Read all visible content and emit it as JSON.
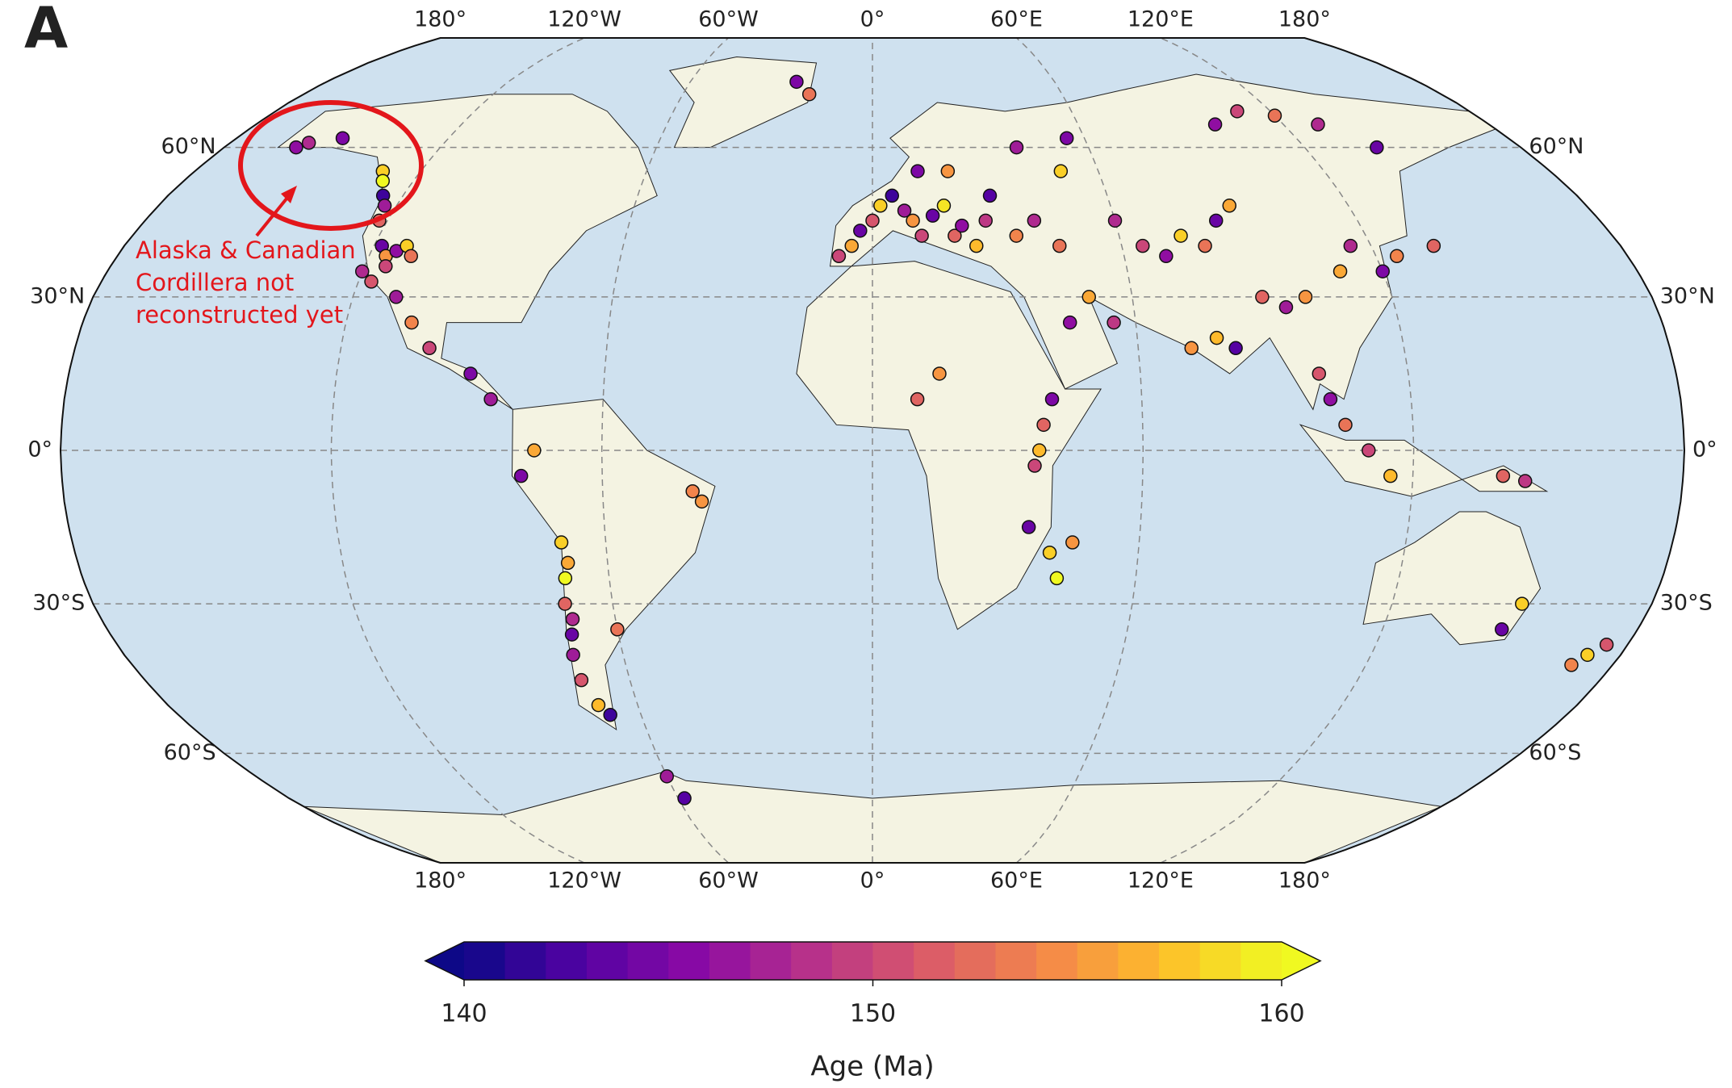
{
  "panel_label": "A",
  "annotation": [
    "Alaska & Canadian",
    "Cordillera not",
    "reconstructed yet"
  ],
  "map": {
    "projection": "robinson",
    "lon_ticks": [
      {
        "value": -180,
        "label": "180°"
      },
      {
        "value": -120,
        "label": "120°W"
      },
      {
        "value": -60,
        "label": "60°W"
      },
      {
        "value": 0,
        "label": "0°"
      },
      {
        "value": 60,
        "label": "60°E"
      },
      {
        "value": 120,
        "label": "120°E"
      },
      {
        "value": 180,
        "label": "180°"
      }
    ],
    "lat_ticks": [
      {
        "value": 60,
        "label": "60°N"
      },
      {
        "value": 30,
        "label": "30°N"
      },
      {
        "value": 0,
        "label": "0°"
      },
      {
        "value": -30,
        "label": "30°S"
      },
      {
        "value": -60,
        "label": "60°S"
      }
    ],
    "points": {
      "lon": [
        -158,
        -160,
        -150,
        -130,
        -128,
        -125,
        -123,
        -122,
        -118,
        -116,
        -115,
        -114,
        -112,
        -110,
        -120,
        -117,
        -110,
        -105,
        -100,
        -90,
        -85,
        -75,
        -78,
        -70,
        -69,
        -70,
        -71,
        -70,
        -71,
        -72,
        -72,
        -70,
        -68,
        -40,
        -38,
        -60,
        -60,
        -58,
        -20,
        -25,
        -5,
        -3,
        0,
        2,
        5,
        8,
        10,
        12,
        15,
        18,
        20,
        22,
        25,
        28,
        30,
        35,
        40,
        45,
        -8,
        12,
        20,
        40,
        50,
        55,
        50,
        45,
        55,
        38,
        37,
        36,
        40,
        35,
        40,
        42,
        45,
        10,
        15,
        65,
        70,
        75,
        80,
        85,
        90,
        60,
        78,
        82,
        72,
        90,
        95,
        100,
        100,
        102,
        105,
        110,
        115,
        110,
        115,
        120,
        125,
        135,
        100,
        110,
        120,
        130,
        140,
        150,
        148,
        170,
        172,
        175,
        140,
        145
      ],
      "lat": [
        61,
        60,
        62,
        55,
        53,
        50,
        48,
        45,
        40,
        38,
        36,
        39,
        40,
        38,
        35,
        33,
        30,
        25,
        20,
        15,
        10,
        0,
        -5,
        -18,
        -22,
        -25,
        -30,
        -33,
        -36,
        -40,
        -45,
        -50,
        -52,
        -8,
        -10,
        -35,
        -65,
        -70,
        72,
        75,
        40,
        43,
        45,
        48,
        50,
        47,
        45,
        42,
        46,
        48,
        42,
        44,
        40,
        45,
        50,
        42,
        45,
        40,
        38,
        55,
        55,
        60,
        55,
        62,
        30,
        25,
        25,
        5,
        0,
        -3,
        10,
        -15,
        -20,
        -25,
        -18,
        10,
        15,
        40,
        38,
        42,
        40,
        45,
        48,
        45,
        22,
        20,
        20,
        30,
        28,
        30,
        15,
        10,
        5,
        0,
        -5,
        35,
        40,
        35,
        38,
        40,
        65,
        68,
        67,
        65,
        60,
        -30,
        -35,
        -42,
        -40,
        -38,
        -5,
        -6
      ],
      "age": [
        148,
        146,
        145,
        158,
        160,
        142,
        147,
        152,
        144,
        155,
        150,
        146,
        158,
        153,
        148,
        151,
        147,
        154,
        150,
        145,
        147,
        156,
        145,
        158,
        156,
        160,
        152,
        148,
        144,
        147,
        151,
        157,
        142,
        154,
        155,
        153,
        147,
        143,
        153,
        145,
        156,
        144,
        151,
        158,
        142,
        147,
        155,
        150,
        144,
        159,
        152,
        146,
        157,
        149,
        143,
        154,
        148,
        153,
        150,
        145,
        155,
        147,
        158,
        145,
        156,
        146,
        149,
        152,
        157,
        150,
        145,
        144,
        158,
        160,
        155,
        152,
        155,
        150,
        146,
        158,
        153,
        144,
        156,
        148,
        157,
        143,
        155,
        152,
        147,
        155,
        151,
        146,
        153,
        150,
        157,
        156,
        148,
        145,
        154,
        152,
        146,
        150,
        153,
        148,
        144,
        158,
        144,
        154,
        158,
        151,
        152,
        149
      ]
    }
  },
  "colorbar": {
    "lim": [
      140,
      160
    ],
    "ticks": [
      140,
      150,
      160
    ],
    "label": "Age (Ma)",
    "colormap": [
      "#0d0887",
      "#5302a3",
      "#8b0aa5",
      "#b83289",
      "#db5c68",
      "#f48849",
      "#febd2a",
      "#f0f921"
    ]
  }
}
